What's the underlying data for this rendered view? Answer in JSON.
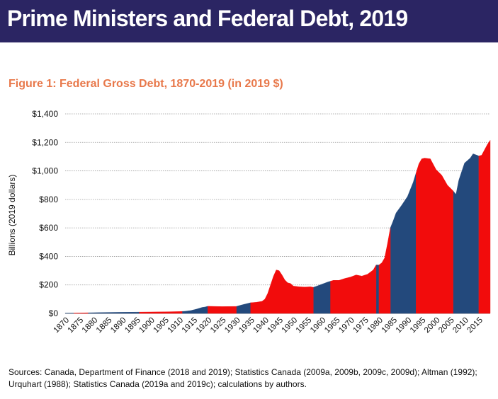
{
  "header": {
    "title": "Prime Ministers and Federal Debt, 2019"
  },
  "figure": {
    "title": "Figure 1: Federal Gross Debt, 1870-2019 (in 2019 $)"
  },
  "sources": "Sources: Canada, Department of Finance (2018 and 2019); Statistics Canada (2009a, 2009b, 2009c, 2009d); Altman (1992); Urquhart (1988); Statistics Canada (2019a and 2019c); calculations by authors.",
  "colors": {
    "banner": "#2b2563",
    "figure_title": "#e8784a",
    "blue_series": "#23497c",
    "red_series": "#f20c0c"
  },
  "chart_data": {
    "type": "area",
    "ylabel": "Billions  (2019 dollars)",
    "xlabel": "",
    "ylim": [
      0,
      1400
    ],
    "xlim": [
      1870,
      2019
    ],
    "y_ticks": [
      "$0",
      "$200",
      "$400",
      "$600",
      "$800",
      "$1,000",
      "$1,200",
      "$1,400"
    ],
    "y_tick_values": [
      0,
      200,
      400,
      600,
      800,
      1000,
      1200,
      1400
    ],
    "x_ticks": [
      "1870",
      "1875",
      "1880",
      "1885",
      "1890",
      "1895",
      "1900",
      "1905",
      "1910",
      "1915",
      "1920",
      "1925",
      "1930",
      "1935",
      "1940",
      "1945",
      "1950",
      "1955",
      "1960",
      "1965",
      "1970",
      "1975",
      "1980",
      "1985",
      "1990",
      "1995",
      "2000",
      "2005",
      "2010",
      "2015"
    ],
    "grid": true,
    "legend": "none",
    "x": [
      1870,
      1875,
      1880,
      1885,
      1890,
      1895,
      1900,
      1905,
      1910,
      1912,
      1914,
      1916,
      1918,
      1919,
      1920,
      1925,
      1930,
      1932,
      1934,
      1935,
      1937,
      1939,
      1940,
      1941,
      1942,
      1943,
      1944,
      1945,
      1946,
      1947,
      1948,
      1949,
      1950,
      1952,
      1954,
      1956,
      1957,
      1958,
      1960,
      1962,
      1964,
      1966,
      1968,
      1970,
      1972,
      1974,
      1976,
      1978,
      1979,
      1980,
      1981,
      1982,
      1983,
      1984,
      1985,
      1986,
      1988,
      1990,
      1992,
      1994,
      1995,
      1996,
      1998,
      2000,
      2002,
      2004,
      2006,
      2007,
      2008,
      2010,
      2012,
      2013,
      2015,
      2016,
      2018,
      2019
    ],
    "y": [
      2,
      3,
      5,
      7,
      8,
      9,
      10,
      11,
      13,
      15,
      20,
      30,
      42,
      45,
      50,
      48,
      49,
      60,
      70,
      75,
      78,
      85,
      100,
      140,
      200,
      260,
      305,
      300,
      270,
      235,
      215,
      210,
      192,
      187,
      185,
      187,
      183,
      190,
      205,
      220,
      232,
      232,
      245,
      255,
      270,
      262,
      275,
      305,
      340,
      340,
      355,
      390,
      490,
      600,
      650,
      705,
      760,
      820,
      920,
      1050,
      1085,
      1090,
      1085,
      1010,
      970,
      900,
      860,
      835,
      935,
      1055,
      1090,
      1120,
      1105,
      1110,
      1185,
      1215
    ],
    "series": [
      {
        "name": "",
        "color": "blue",
        "periods": [
          [
            1870,
            1873
          ],
          [
            1878,
            1896
          ],
          [
            1911,
            1920
          ],
          [
            1930,
            1935
          ],
          [
            1957,
            1963
          ],
          [
            1979,
            1980
          ],
          [
            1984,
            1993
          ],
          [
            2006,
            2015
          ]
        ]
      },
      {
        "name": "",
        "color": "red",
        "periods": [
          [
            1873,
            1878
          ],
          [
            1896,
            1911
          ],
          [
            1920,
            1930
          ],
          [
            1935,
            1957
          ],
          [
            1963,
            1979
          ],
          [
            1980,
            1984
          ],
          [
            1993,
            2006
          ],
          [
            2015,
            2019
          ]
        ]
      }
    ]
  }
}
